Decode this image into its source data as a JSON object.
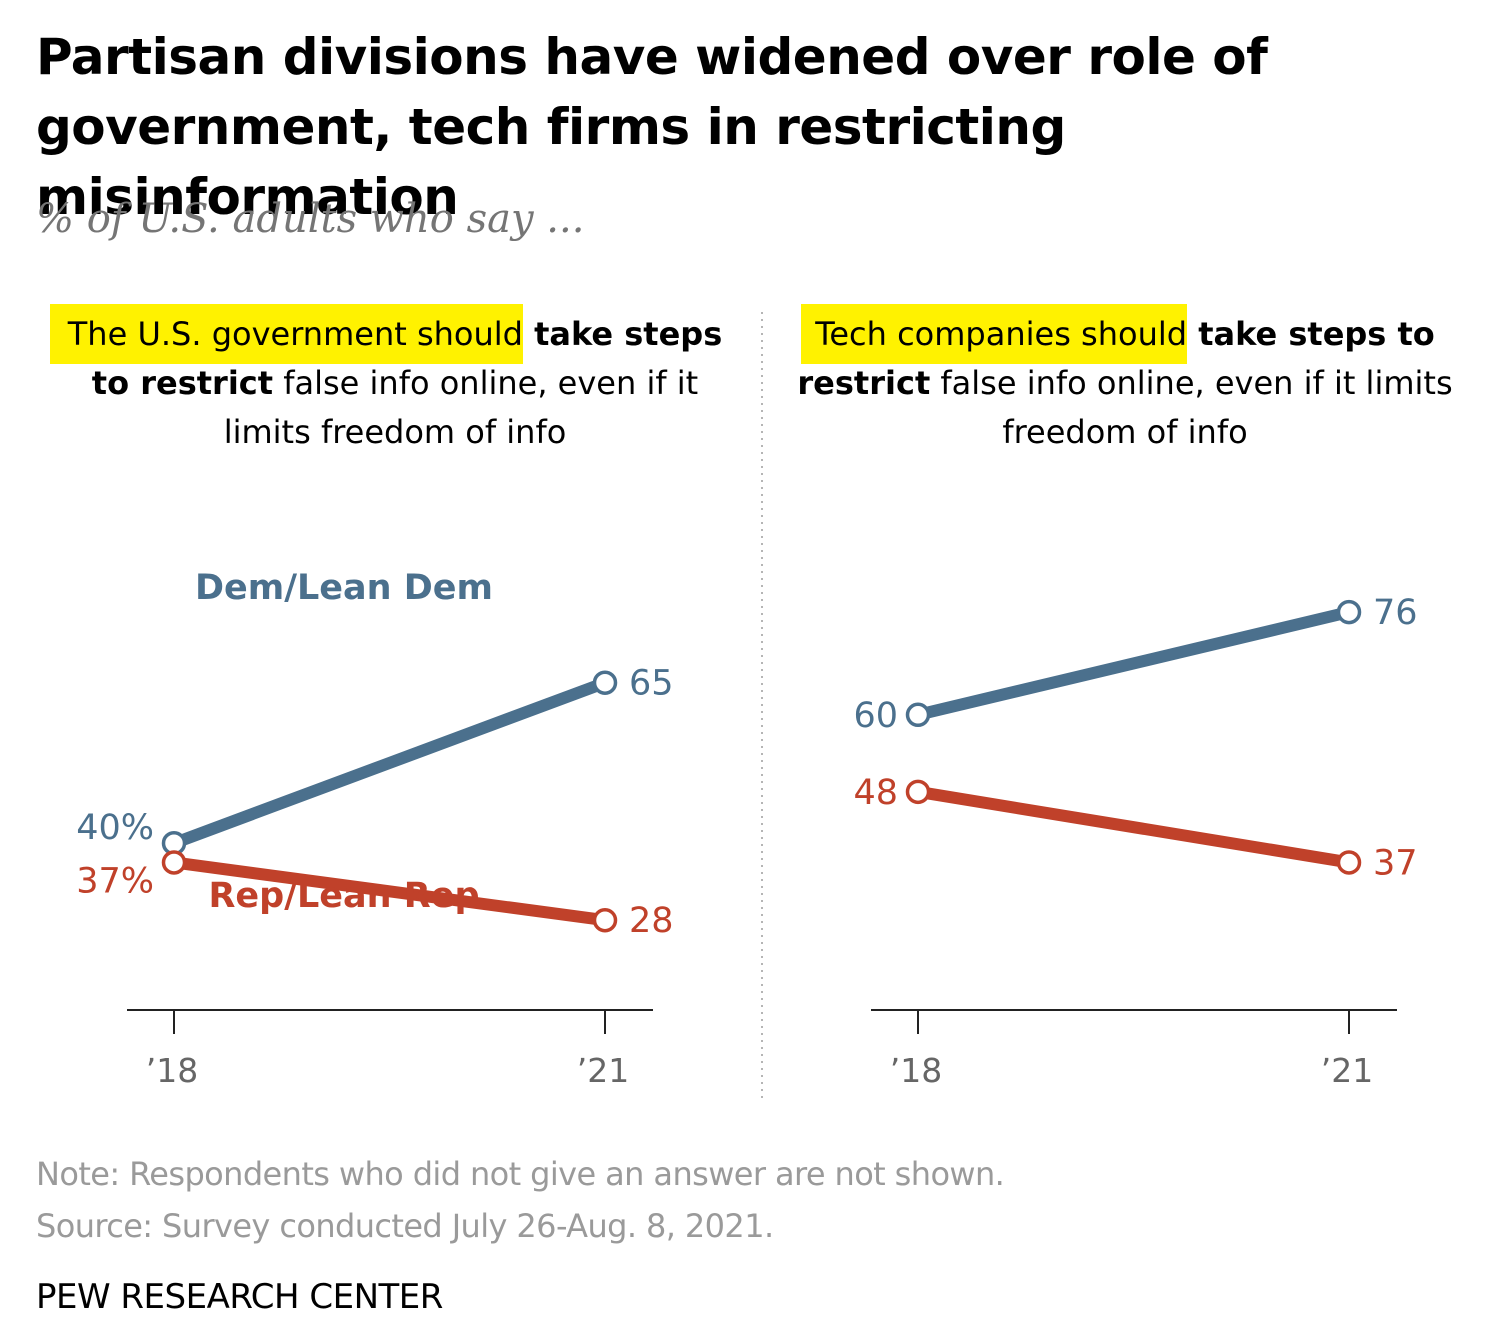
{
  "title": "Partisan divisions have widened over role of government, tech firms in restricting misinformation",
  "subtitle": "% of U.S. adults who say ...",
  "colors": {
    "dem": "#4b708d",
    "rep": "#c0412a",
    "highlight": "#fff200",
    "axis": "#222222",
    "muted": "#9a9a9a"
  },
  "panels": [
    {
      "head_highlight": "The U.S. government should",
      "head_bold": " take steps to restrict",
      "head_rest": " false info online, even if it limits freedom of info"
    },
    {
      "head_highlight": "Tech companies should",
      "head_bold": " take steps to restrict",
      "head_rest": " false info online, even if it limits freedom of info"
    }
  ],
  "chart_data": [
    {
      "type": "line",
      "categories": [
        "’18",
        "’21"
      ],
      "series": [
        {
          "name": "Dem/Lean Dem",
          "values": [
            40,
            65
          ],
          "labels": [
            "40%",
            "65"
          ]
        },
        {
          "name": "Rep/Lean Rep",
          "values": [
            37,
            28
          ],
          "labels": [
            "37%",
            "28"
          ]
        }
      ],
      "ylim": [
        0,
        100
      ]
    },
    {
      "type": "line",
      "categories": [
        "’18",
        "’21"
      ],
      "series": [
        {
          "name": "Dem/Lean Dem",
          "values": [
            60,
            76
          ],
          "labels": [
            "60",
            "76"
          ]
        },
        {
          "name": "Rep/Lean Rep",
          "values": [
            48,
            37
          ],
          "labels": [
            "48",
            "37"
          ]
        }
      ],
      "ylim": [
        0,
        100
      ]
    }
  ],
  "note": "Note: Respondents who did not give an answer are not shown.",
  "source": "Source: Survey conducted July 26-Aug. 8, 2021.",
  "brand": "PEW RESEARCH CENTER"
}
